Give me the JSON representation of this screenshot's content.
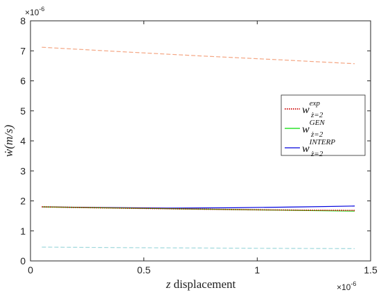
{
  "chart_data": {
    "type": "line",
    "title": "",
    "xlabel": {
      "var": "z",
      "text": " displacement"
    },
    "ylabel": {
      "var": "ẇ",
      "rest": "(m/s)"
    },
    "x_exponent": {
      "base": "×10",
      "power": "-6"
    },
    "y_exponent": {
      "base": "×10",
      "power": "-6"
    },
    "xlim": [
      0,
      1.5
    ],
    "ylim": [
      0,
      8
    ],
    "x_ticks": [
      {
        "value": 0,
        "label": "0"
      },
      {
        "value": 0.5,
        "label": "0.5"
      },
      {
        "value": 1,
        "label": "1"
      },
      {
        "value": 1.5,
        "label": "1.5"
      }
    ],
    "y_ticks": [
      {
        "value": 0,
        "label": "0"
      },
      {
        "value": 1,
        "label": "1"
      },
      {
        "value": 2,
        "label": "2"
      },
      {
        "value": 3,
        "label": "3"
      },
      {
        "value": 4,
        "label": "4"
      },
      {
        "value": 5,
        "label": "5"
      },
      {
        "value": 6,
        "label": "6"
      },
      {
        "value": 7,
        "label": "7"
      },
      {
        "value": 8,
        "label": "8"
      }
    ],
    "grid": false,
    "legend_position": "right",
    "series": [
      {
        "key": "exp",
        "name": {
          "base": "w",
          "sup": "exp",
          "sub": "ż=2"
        },
        "color": "#cc0000",
        "style": "dotted",
        "in_legend": true,
        "x": [
          0.05,
          0.3,
          0.6,
          0.9,
          1.2,
          1.43
        ],
        "y": [
          1.8,
          1.77,
          1.74,
          1.71,
          1.69,
          1.68
        ]
      },
      {
        "key": "gen",
        "name": {
          "base": "w",
          "sup": "GEN",
          "sub": "ż=2"
        },
        "color": "#00dd00",
        "style": "solid",
        "in_legend": true,
        "x": [
          0.05,
          0.3,
          0.6,
          0.9,
          1.2,
          1.43
        ],
        "y": [
          1.8,
          1.77,
          1.74,
          1.71,
          1.68,
          1.66
        ]
      },
      {
        "key": "interp",
        "name": {
          "base": "w",
          "sup": "INTERP",
          "sub": "ż=2"
        },
        "color": "#0000dd",
        "style": "solid",
        "in_legend": true,
        "x": [
          0.05,
          0.3,
          0.6,
          0.9,
          1.2,
          1.43
        ],
        "y": [
          1.8,
          1.78,
          1.76,
          1.77,
          1.8,
          1.83
        ]
      },
      {
        "key": "upper",
        "color": "#f4a582",
        "style": "dashed",
        "in_legend": false,
        "x": [
          0.05,
          0.4,
          0.75,
          1.1,
          1.43
        ],
        "y": [
          7.12,
          6.97,
          6.83,
          6.7,
          6.57
        ]
      },
      {
        "key": "lower",
        "color": "#9fd8dc",
        "style": "dashed",
        "in_legend": false,
        "x": [
          0.05,
          0.5,
          1.0,
          1.43
        ],
        "y": [
          0.46,
          0.44,
          0.42,
          0.41
        ]
      }
    ]
  }
}
